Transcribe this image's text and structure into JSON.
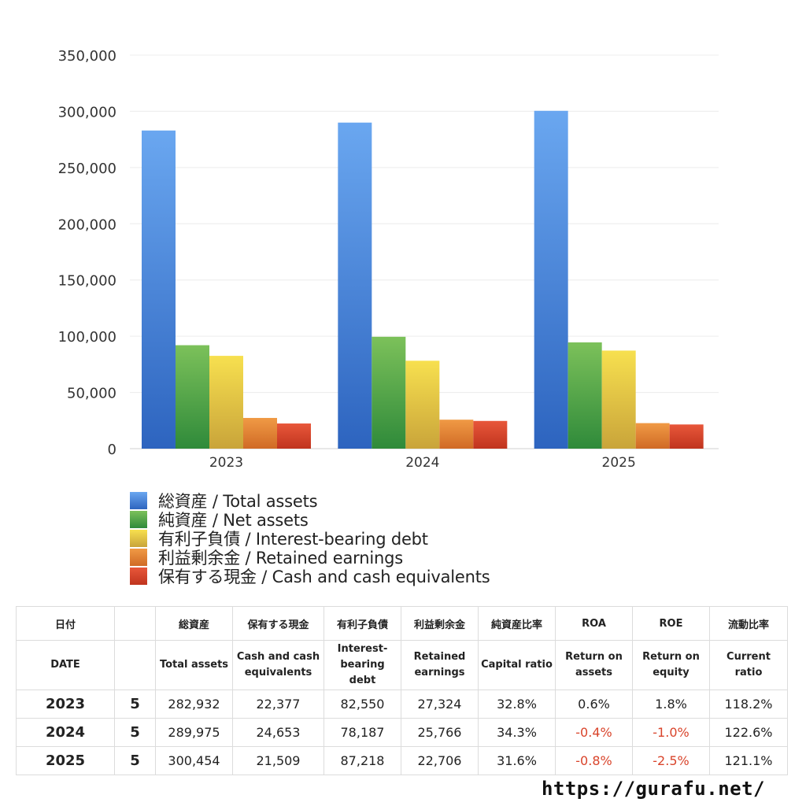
{
  "chart_data": {
    "type": "bar",
    "categories": [
      "2023",
      "2024",
      "2025"
    ],
    "series": [
      {
        "name": "総資産 / Total assets",
        "values": [
          282932,
          289975,
          300454
        ],
        "color_top": "#6aa7f0",
        "color_bottom": "#2d64bf"
      },
      {
        "name": "純資産 / Net assets",
        "values": [
          92000,
          99500,
          94500
        ],
        "color_top": "#7cc15a",
        "color_bottom": "#2f8a3a"
      },
      {
        "name": "有利子負債 / Interest-bearing debt",
        "values": [
          82550,
          78187,
          87218
        ],
        "color_top": "#f7e04f",
        "color_bottom": "#c9a43a"
      },
      {
        "name": "利益剰余金 / Retained earnings",
        "values": [
          27324,
          25766,
          22706
        ],
        "color_top": "#f09a45",
        "color_bottom": "#d06a25"
      },
      {
        "name": "保有する現金 /  Cash and cash equivalents",
        "values": [
          22377,
          24653,
          21509
        ],
        "color_top": "#e8573a",
        "color_bottom": "#c0341e"
      }
    ],
    "yticks": [
      "350,000",
      "300,000",
      "250,000",
      "200,000",
      "150,000",
      "100,000",
      "50,000",
      "0"
    ],
    "ylim": [
      0,
      350000
    ],
    "grid": true,
    "legend_position": "bottom-left"
  },
  "table": {
    "header_ja": [
      "日付",
      "",
      "総資産",
      "保有する現金",
      "有利子負債",
      "利益剰余金",
      "純資産比率",
      "ROA",
      "ROE",
      "流動比率"
    ],
    "header_en": [
      "DATE",
      "",
      "Total assets",
      "Cash and cash equivalents",
      "Interest-bearing debt",
      "Retained earnings",
      "Capital ratio",
      "Return on assets",
      "Return on equity",
      "Current ratio"
    ],
    "rows": [
      {
        "year": "2023",
        "count": "5",
        "total_assets": "282,932",
        "cash": "22,377",
        "debt": "82,550",
        "retained": "27,324",
        "capital_ratio": "32.8%",
        "roa": "0.6%",
        "roe": "1.8%",
        "current_ratio": "118.2%"
      },
      {
        "year": "2024",
        "count": "5",
        "total_assets": "289,975",
        "cash": "24,653",
        "debt": "78,187",
        "retained": "25,766",
        "capital_ratio": "34.3%",
        "roa": "-0.4%",
        "roe": "-1.0%",
        "current_ratio": "122.6%"
      },
      {
        "year": "2025",
        "count": "5",
        "total_assets": "300,454",
        "cash": "21,509",
        "debt": "87,218",
        "retained": "22,706",
        "capital_ratio": "31.6%",
        "roa": "-0.8%",
        "roe": "-2.5%",
        "current_ratio": "121.1%"
      }
    ]
  },
  "footer": {
    "url": "https://gurafu.net/"
  }
}
